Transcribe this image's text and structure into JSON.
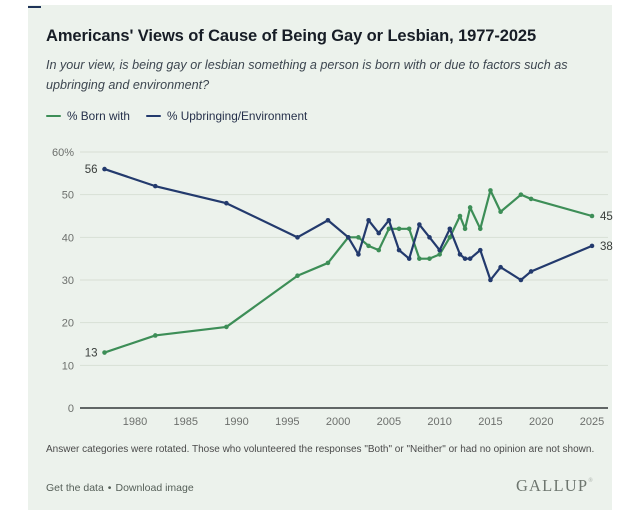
{
  "card": {
    "title": "Americans' Views of Cause of Being Gay or Lesbian, 1977-2025",
    "subtitle": "In your view, is being gay or lesbian something a person is born with or due to factors such as upbringing and environment?",
    "legend": [
      {
        "label": "% Born with",
        "color": "#3d8e57"
      },
      {
        "label": "% Upbringing/Environment",
        "color": "#233a6d"
      }
    ],
    "footnote": "Answer categories were rotated. Those who volunteered the responses \"Both\" or \"Neither\" or had no opinion are not shown.",
    "footer": {
      "link1": "Get the data",
      "separator": "•",
      "link2": "Download image",
      "logo": "GALLUP"
    }
  },
  "chart_data": {
    "type": "line",
    "x": [
      1977,
      1982,
      1989,
      1996,
      1999,
      2001,
      2002,
      2003,
      2004,
      2005,
      2006,
      2007,
      2008,
      2009,
      2010,
      2011,
      2012,
      2012.5,
      2013,
      2014,
      2015,
      2016,
      2018,
      2019,
      2025
    ],
    "series": [
      {
        "id": "born-with",
        "name": "% Born with",
        "color": "#3d8e57",
        "values": [
          13,
          17,
          19,
          31,
          34,
          40,
          40,
          38,
          37,
          42,
          42,
          42,
          35,
          35,
          36,
          40,
          45,
          42,
          47,
          42,
          51,
          46,
          50,
          49,
          45
        ]
      },
      {
        "id": "upbringing-environment",
        "name": "% Upbringing/Environment",
        "color": "#233a6d",
        "values": [
          56,
          52,
          48,
          40,
          44,
          40,
          36,
          44,
          41,
          44,
          37,
          35,
          43,
          40,
          37,
          42,
          36,
          35,
          35,
          37,
          30,
          33,
          30,
          32,
          38
        ]
      }
    ],
    "title": "Americans' Views of Cause of Being Gay or Lesbian, 1977-2025",
    "xlabel": "",
    "ylabel": "",
    "ylim": [
      0,
      60
    ],
    "xlim": [
      1976,
      2026.5
    ],
    "grid": true,
    "legend_position": "top-left",
    "yticks": [
      0,
      10,
      20,
      30,
      40,
      50,
      60
    ],
    "ytick_labels": [
      "0",
      "10",
      "20",
      "30",
      "40",
      "50",
      "60%"
    ],
    "xticks": [
      1980,
      1985,
      1990,
      1995,
      2000,
      2005,
      2010,
      2015,
      2020,
      2025
    ],
    "point_labels": [
      {
        "year": 1977,
        "value": 56,
        "text": "56",
        "anchor": "end"
      },
      {
        "year": 1977,
        "value": 13,
        "text": "13",
        "anchor": "end"
      },
      {
        "year": 2025,
        "value": 45,
        "text": "45",
        "anchor": "start"
      },
      {
        "year": 2025,
        "value": 38,
        "text": "38",
        "anchor": "start"
      }
    ]
  }
}
